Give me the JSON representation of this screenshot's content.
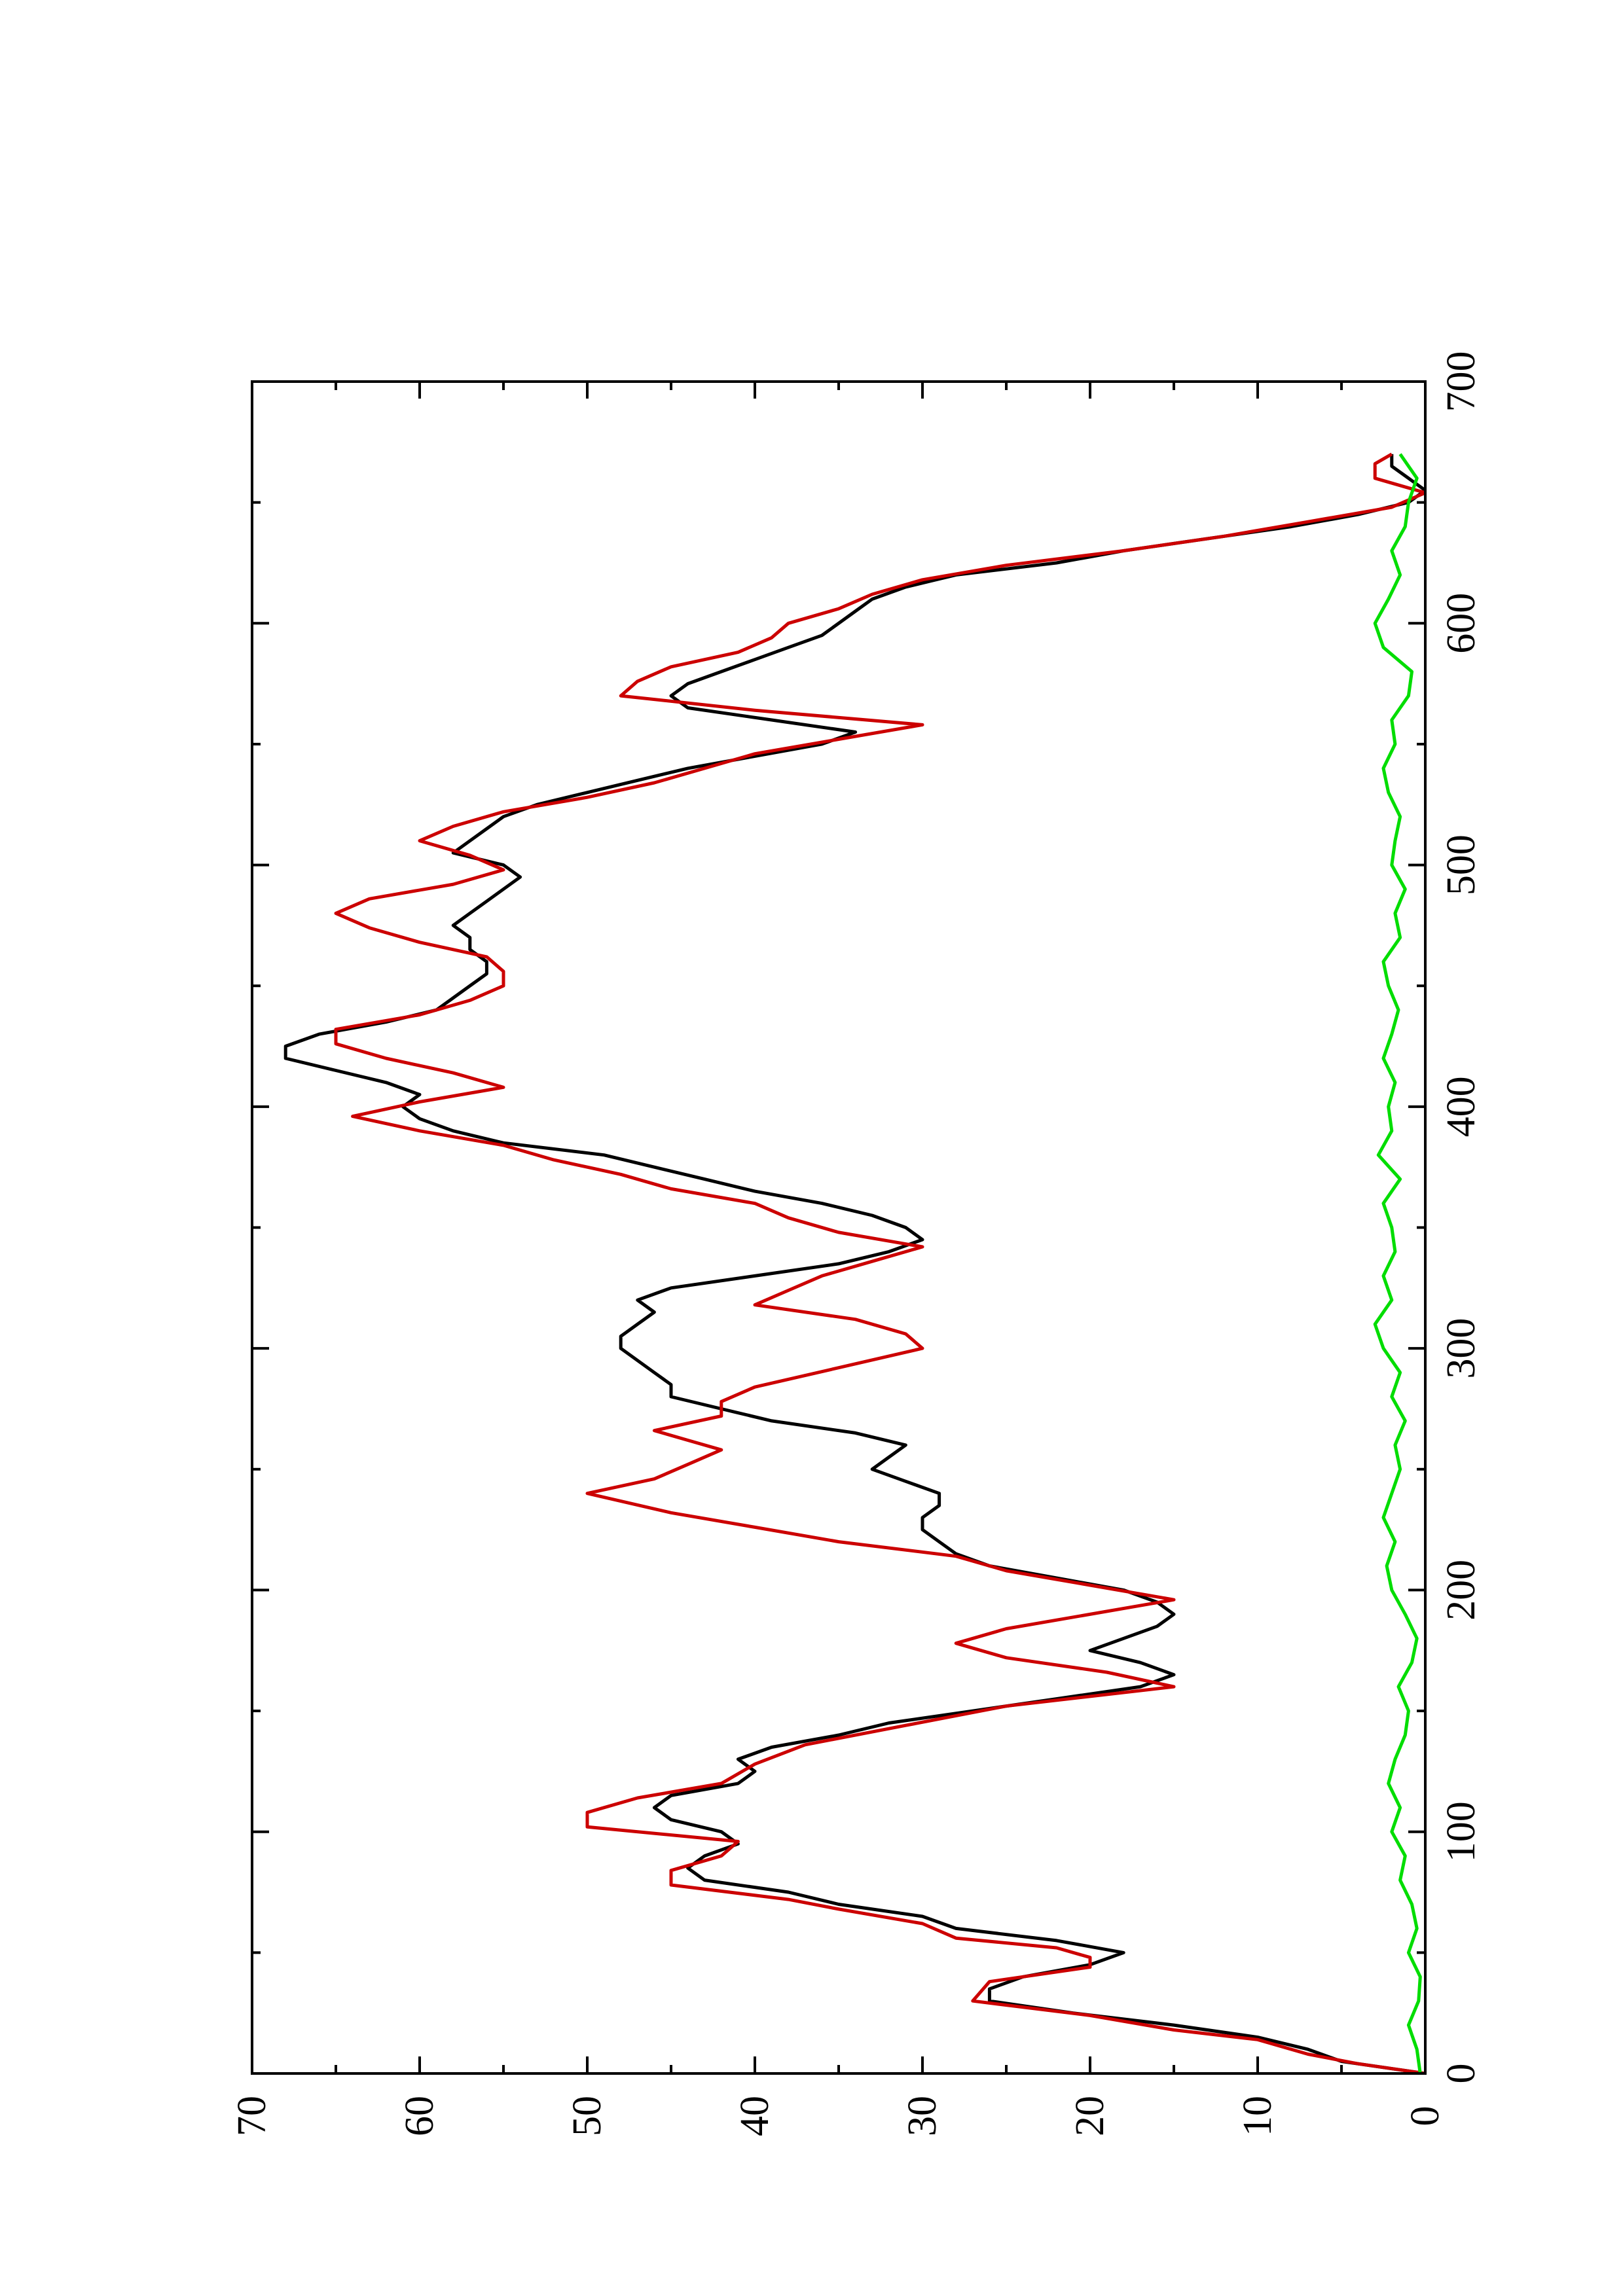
{
  "chart_data": {
    "type": "line",
    "orientation": "rotated-90-ccw",
    "title": "",
    "xlabel": "",
    "ylabel": "",
    "xlim": [
      0,
      700
    ],
    "ylim": [
      0,
      70
    ],
    "x_ticks": [
      0,
      100,
      200,
      300,
      400,
      500,
      600,
      700
    ],
    "y_ticks": [
      0,
      10,
      20,
      30,
      40,
      50,
      60,
      70
    ],
    "x_tick_labels": [
      "0",
      "100",
      "200",
      "300",
      "400",
      "500",
      "600",
      "700"
    ],
    "y_tick_labels": [
      "0",
      "10",
      "20",
      "30",
      "40",
      "50",
      "60",
      "70"
    ],
    "grid": false,
    "legend": "none",
    "series": [
      {
        "color": "#000000",
        "x": [
          0,
          5,
          10,
          15,
          20,
          25,
          30,
          35,
          40,
          45,
          50,
          55,
          60,
          65,
          70,
          75,
          80,
          85,
          90,
          95,
          100,
          105,
          110,
          115,
          120,
          125,
          130,
          135,
          140,
          145,
          150,
          155,
          160,
          165,
          170,
          175,
          180,
          185,
          190,
          195,
          200,
          205,
          210,
          215,
          220,
          225,
          230,
          235,
          240,
          245,
          250,
          255,
          260,
          265,
          270,
          275,
          280,
          285,
          290,
          295,
          300,
          305,
          310,
          315,
          320,
          325,
          330,
          335,
          340,
          345,
          350,
          355,
          360,
          365,
          370,
          375,
          380,
          385,
          390,
          395,
          400,
          405,
          410,
          415,
          420,
          425,
          430,
          435,
          440,
          445,
          450,
          455,
          460,
          465,
          470,
          475,
          480,
          485,
          490,
          495,
          500,
          505,
          510,
          515,
          520,
          525,
          530,
          535,
          540,
          545,
          550,
          555,
          560,
          565,
          570,
          575,
          580,
          585,
          590,
          595,
          600,
          605,
          610,
          615,
          620,
          625,
          630,
          635,
          640,
          645,
          650,
          655,
          660,
          665,
          670
        ],
        "y": [
          0,
          5,
          7,
          10,
          15,
          21,
          26,
          26,
          24,
          20,
          18,
          22,
          28,
          30,
          35,
          38,
          43,
          44,
          43,
          41,
          42,
          45,
          46,
          45,
          41,
          40,
          41,
          39,
          35,
          32,
          27,
          22,
          17,
          15,
          17,
          20,
          18,
          16,
          15,
          16,
          18,
          22,
          26,
          28,
          29,
          30,
          30,
          29,
          29,
          31,
          33,
          32,
          31,
          34,
          39,
          42,
          45,
          45,
          46,
          47,
          48,
          48,
          47,
          46,
          47,
          45,
          40,
          35,
          32,
          30,
          31,
          33,
          36,
          40,
          43,
          46,
          49,
          55,
          58,
          60,
          61,
          60,
          62,
          65,
          68,
          68,
          66,
          62,
          59,
          58,
          57,
          56,
          56,
          57,
          57,
          58,
          57,
          56,
          55,
          54,
          55,
          58,
          57,
          56,
          55,
          53,
          50,
          47,
          44,
          40,
          36,
          34,
          39,
          44,
          45,
          44,
          42,
          40,
          38,
          36,
          35,
          34,
          33,
          31,
          28,
          22,
          18,
          13,
          8,
          4,
          1,
          0,
          1,
          2,
          2
        ]
      },
      {
        "color": "#cc0000",
        "x": [
          0,
          4,
          8,
          14,
          18,
          24,
          30,
          38,
          44,
          48,
          52,
          56,
          62,
          68,
          72,
          78,
          84,
          90,
          96,
          102,
          108,
          114,
          120,
          128,
          136,
          144,
          152,
          160,
          166,
          172,
          178,
          184,
          190,
          196,
          202,
          208,
          214,
          220,
          226,
          232,
          240,
          246,
          252,
          258,
          262,
          266,
          272,
          278,
          284,
          292,
          300,
          306,
          312,
          318,
          324,
          330,
          336,
          342,
          348,
          354,
          360,
          366,
          372,
          378,
          384,
          390,
          396,
          402,
          408,
          414,
          420,
          426,
          432,
          438,
          444,
          450,
          456,
          462,
          468,
          474,
          480,
          486,
          492,
          498,
          504,
          510,
          516,
          522,
          528,
          534,
          540,
          546,
          552,
          558,
          564,
          570,
          576,
          582,
          588,
          594,
          600,
          606,
          612,
          618,
          624,
          630,
          636,
          642,
          648,
          654,
          660,
          666,
          670
        ],
        "y": [
          0,
          4,
          7,
          10,
          15,
          20,
          27,
          26,
          20,
          20,
          22,
          28,
          30,
          35,
          38,
          45,
          45,
          42,
          41,
          50,
          50,
          47,
          42,
          40,
          37,
          31,
          25,
          15,
          19,
          25,
          28,
          25,
          20,
          15,
          20,
          25,
          28,
          35,
          40,
          45,
          50,
          46,
          44,
          42,
          44,
          46,
          42,
          42,
          40,
          35,
          30,
          31,
          34,
          40,
          38,
          36,
          33,
          30,
          35,
          38,
          40,
          45,
          48,
          52,
          55,
          60,
          64,
          60,
          55,
          58,
          62,
          65,
          65,
          60,
          57,
          55,
          55,
          56,
          60,
          63,
          65,
          63,
          58,
          55,
          57,
          60,
          58,
          55,
          50,
          46,
          43,
          40,
          35,
          30,
          40,
          48,
          47,
          45,
          41,
          39,
          38,
          35,
          33,
          30,
          25,
          18,
          12,
          7,
          2,
          0,
          3,
          3,
          2
        ]
      },
      {
        "color": "#00dd00",
        "x": [
          0,
          10,
          20,
          30,
          40,
          50,
          60,
          70,
          80,
          90,
          100,
          110,
          120,
          130,
          140,
          150,
          160,
          170,
          180,
          190,
          200,
          210,
          220,
          230,
          240,
          250,
          260,
          270,
          280,
          290,
          300,
          310,
          320,
          330,
          340,
          350,
          360,
          370,
          380,
          390,
          400,
          410,
          420,
          430,
          440,
          450,
          460,
          470,
          480,
          490,
          500,
          510,
          520,
          530,
          540,
          550,
          560,
          570,
          580,
          590,
          600,
          610,
          620,
          630,
          640,
          650,
          660,
          670
        ],
        "y": [
          0.3,
          0.5,
          1.0,
          0.4,
          0.3,
          1.0,
          0.5,
          0.8,
          1.5,
          1.2,
          2.0,
          1.5,
          2.2,
          1.8,
          1.2,
          1.0,
          1.6,
          0.8,
          0.5,
          1.2,
          2.0,
          2.3,
          1.8,
          2.5,
          2.0,
          1.5,
          1.8,
          1.2,
          2.0,
          1.5,
          2.5,
          3.0,
          2.0,
          2.5,
          1.8,
          2.0,
          2.5,
          1.5,
          2.8,
          2.0,
          2.2,
          1.8,
          2.5,
          2.0,
          1.6,
          2.2,
          2.5,
          1.5,
          1.8,
          1.2,
          2.0,
          1.8,
          1.5,
          2.2,
          2.5,
          1.8,
          2.0,
          1.0,
          0.8,
          2.5,
          3.0,
          2.2,
          1.5,
          2.0,
          1.2,
          1.0,
          0.5,
          1.5
        ]
      }
    ]
  }
}
